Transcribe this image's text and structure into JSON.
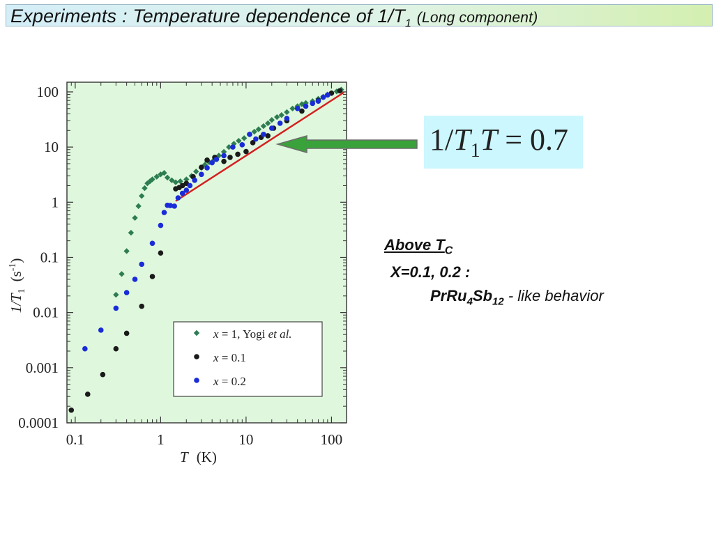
{
  "header": {
    "title_main": "Experiments : Temperature dependence of 1/T",
    "title_sub": "1",
    "title_paren": "(Long component)"
  },
  "callout": {
    "formula_part1": "1/",
    "formula_T": "T",
    "formula_sub": "1",
    "formula_T2": "T",
    "formula_rest": " = 0.7",
    "arrow_color": "#3aa23a"
  },
  "notes": {
    "above_label": "Above T",
    "above_sub": "C",
    "x_values": "X=0.1, 0.2 :",
    "compound_pr": "PrRu",
    "compound_sub1": "4",
    "compound_sb": "Sb",
    "compound_sub2": "12",
    "compound_rest": " - like behavior"
  },
  "chart_data": {
    "type": "scatter",
    "x_scale": "log",
    "y_scale": "log",
    "xlim": [
      0.08,
      150
    ],
    "ylim": [
      0.0001,
      150
    ],
    "xlabel_italic": "T",
    "xlabel_unit": "(K)",
    "ylabel_main": "1/T",
    "ylabel_sub": "1",
    "ylabel_unit": "(s",
    "ylabel_exp": "-1",
    "ylabel_close": ")",
    "x_ticks": [
      0.1,
      1,
      10,
      100
    ],
    "x_tick_labels": [
      "0.1",
      "1",
      "10",
      "100"
    ],
    "y_ticks": [
      0.0001,
      0.001,
      0.01,
      0.1,
      1,
      10,
      100
    ],
    "y_tick_labels": [
      "0.0001",
      "0.001",
      "0.01",
      "0.1",
      "1",
      "10",
      "100"
    ],
    "background": "#dff8dd",
    "legend_placement": "bottom-right",
    "series": [
      {
        "name": "x = 1, Yogi et al.",
        "name_text": "x = 1, Yogi ",
        "name_italic": "et al.",
        "marker": "diamond",
        "color": "#2e7d52",
        "points": [
          [
            0.3,
            0.021
          ],
          [
            0.35,
            0.05
          ],
          [
            0.4,
            0.13
          ],
          [
            0.45,
            0.28
          ],
          [
            0.5,
            0.52
          ],
          [
            0.55,
            0.85
          ],
          [
            0.6,
            1.3
          ],
          [
            0.65,
            1.8
          ],
          [
            0.7,
            2.2
          ],
          [
            0.75,
            2.4
          ],
          [
            0.8,
            2.6
          ],
          [
            0.9,
            2.9
          ],
          [
            1.0,
            3.2
          ],
          [
            1.1,
            3.4
          ],
          [
            1.2,
            2.8
          ],
          [
            1.35,
            2.5
          ],
          [
            1.5,
            2.3
          ],
          [
            1.7,
            2.4
          ],
          [
            2.0,
            2.6
          ],
          [
            2.3,
            3.0
          ],
          [
            2.6,
            3.6
          ],
          [
            3.0,
            4.2
          ],
          [
            3.3,
            4.8
          ],
          [
            3.7,
            5.3
          ],
          [
            4.2,
            5.8
          ],
          [
            4.8,
            7
          ],
          [
            5.5,
            8.2
          ],
          [
            6.3,
            10
          ],
          [
            7.2,
            11.5
          ],
          [
            8.2,
            13
          ],
          [
            9.5,
            14.5
          ],
          [
            11,
            17
          ],
          [
            12.5,
            19
          ],
          [
            14,
            21
          ],
          [
            16,
            24
          ],
          [
            18,
            27
          ],
          [
            20,
            31
          ],
          [
            23,
            35
          ],
          [
            26,
            38
          ],
          [
            30,
            43
          ],
          [
            35,
            50
          ],
          [
            40,
            55
          ],
          [
            45,
            60
          ],
          [
            50,
            63
          ],
          [
            60,
            68
          ],
          [
            70,
            75
          ],
          [
            80,
            82
          ],
          [
            90,
            90
          ],
          [
            100,
            95
          ],
          [
            115,
            102
          ],
          [
            130,
            110
          ]
        ]
      },
      {
        "name": "x = 0.1",
        "marker": "circle",
        "color": "#1a1a1a",
        "points": [
          [
            0.09,
            0.00017
          ],
          [
            0.14,
            0.00033
          ],
          [
            0.21,
            0.00075
          ],
          [
            0.3,
            0.0022
          ],
          [
            0.4,
            0.0042
          ],
          [
            0.6,
            0.013
          ],
          [
            0.8,
            0.045
          ],
          [
            1.0,
            0.12
          ],
          [
            1.5,
            1.75
          ],
          [
            1.65,
            1.85
          ],
          [
            1.8,
            2.0
          ],
          [
            2.0,
            2.2
          ],
          [
            2.4,
            2.9
          ],
          [
            3.0,
            4.3
          ],
          [
            3.5,
            5.8
          ],
          [
            4.3,
            6.5
          ],
          [
            5.5,
            5.5
          ],
          [
            6.5,
            6.5
          ],
          [
            8,
            7.4
          ],
          [
            10,
            8.3
          ],
          [
            12,
            12
          ],
          [
            15,
            15
          ],
          [
            18,
            16
          ],
          [
            21,
            22
          ],
          [
            30,
            30
          ],
          [
            45,
            45
          ],
          [
            70,
            70
          ],
          [
            100,
            95
          ],
          [
            125,
            105
          ]
        ]
      },
      {
        "name": "x = 0.2",
        "marker": "circle",
        "color": "#1a2bd8",
        "points": [
          [
            0.13,
            0.0022
          ],
          [
            0.2,
            0.0048
          ],
          [
            0.3,
            0.012
          ],
          [
            0.4,
            0.023
          ],
          [
            0.5,
            0.04
          ],
          [
            0.6,
            0.075
          ],
          [
            0.8,
            0.18
          ],
          [
            1.0,
            0.38
          ],
          [
            1.1,
            0.65
          ],
          [
            1.2,
            0.88
          ],
          [
            1.3,
            0.87
          ],
          [
            1.45,
            0.85
          ],
          [
            1.6,
            1.2
          ],
          [
            1.8,
            1.45
          ],
          [
            2.0,
            1.65
          ],
          [
            2.2,
            2.0
          ],
          [
            2.5,
            2.5
          ],
          [
            3.0,
            3.2
          ],
          [
            3.5,
            4.2
          ],
          [
            4.0,
            5.2
          ],
          [
            4.5,
            6.0
          ],
          [
            5.5,
            7.0
          ],
          [
            7,
            10
          ],
          [
            9,
            11
          ],
          [
            11,
            17
          ],
          [
            13,
            14
          ],
          [
            16,
            17
          ],
          [
            20,
            22
          ],
          [
            25,
            27
          ],
          [
            30,
            33
          ],
          [
            40,
            50
          ],
          [
            50,
            55
          ],
          [
            60,
            62
          ],
          [
            70,
            68
          ],
          [
            80,
            80
          ],
          [
            90,
            88
          ]
        ]
      }
    ],
    "fit_line": {
      "label": "1/T1T = 0.7",
      "color": "#d42020",
      "points": [
        [
          1.5,
          1.05
        ],
        [
          140,
          98
        ]
      ]
    }
  }
}
